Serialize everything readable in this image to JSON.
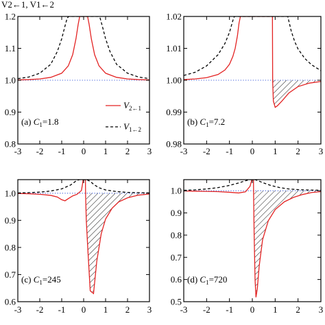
{
  "header_fragment": "V2←1, V1←2",
  "colors": {
    "v21": "#e32222",
    "v12": "#000000",
    "reference": "#3b5bdb",
    "hatch": "#000000"
  },
  "chart_data": [
    {
      "type": "line",
      "panel": "a",
      "annotation": {
        "label": "(a) ",
        "c_symbol": "C",
        "c_sub": "1",
        "value": "=1.8"
      },
      "xlim": [
        -3,
        3
      ],
      "ylim": [
        0.8,
        1.2
      ],
      "xticks": [
        "-3",
        "-2",
        "-1",
        "0",
        "1",
        "2",
        "3"
      ],
      "yticks": [
        "0.8",
        "0.9",
        "1.0",
        "1.1",
        "1.2"
      ],
      "yticks_values": [
        0.8,
        0.9,
        1.0,
        1.1,
        1.2
      ],
      "reference_line": 1.0,
      "series": [
        {
          "name": "V2←1",
          "style": "solid",
          "color": "#e32222",
          "x": [
            -3,
            -2.5,
            -2,
            -1.5,
            -1,
            -0.7,
            -0.5,
            -0.35,
            -0.25,
            -0.18,
            0.18,
            0.25,
            0.35,
            0.5,
            0.7,
            1,
            1.5,
            2,
            2.5,
            3
          ],
          "y": [
            1.001,
            1.002,
            1.004,
            1.009,
            1.022,
            1.045,
            1.08,
            1.13,
            1.175,
            1.2,
            1.2,
            1.175,
            1.13,
            1.08,
            1.045,
            1.022,
            1.009,
            1.004,
            1.002,
            1.001
          ]
        },
        {
          "name": "V1←2",
          "style": "dashed",
          "color": "#000000",
          "x": [
            -3,
            -2.5,
            -2,
            -1.5,
            -1.2,
            -1,
            -0.85,
            -0.75,
            -0.68,
            0.68,
            0.75,
            0.85,
            1,
            1.2,
            1.5,
            2,
            2.5,
            3
          ],
          "y": [
            1.005,
            1.01,
            1.022,
            1.05,
            1.09,
            1.13,
            1.17,
            1.195,
            1.2,
            1.2,
            1.195,
            1.17,
            1.13,
            1.09,
            1.05,
            1.022,
            1.01,
            1.005
          ]
        }
      ],
      "legend": {
        "placement": "lower-right",
        "entries": [
          {
            "symbol": "V",
            "sub": "2←1",
            "style": "solid"
          },
          {
            "symbol": "V",
            "sub": "1←2",
            "style": "dashed"
          }
        ]
      }
    },
    {
      "type": "line",
      "panel": "b",
      "annotation": {
        "label": "(b) ",
        "c_symbol": "C",
        "c_sub": "1",
        "value": "=7.2"
      },
      "xlim": [
        -3,
        3
      ],
      "ylim": [
        0.98,
        1.02
      ],
      "xticks": [
        "-3",
        "-2",
        "-1",
        "0",
        "1",
        "2",
        "3"
      ],
      "yticks": [
        "0.98",
        "0.99",
        "1.00",
        "1.01",
        "1.02"
      ],
      "yticks_values": [
        0.98,
        0.99,
        1.0,
        1.01,
        1.02
      ],
      "reference_line": 1.0,
      "hatched_region": {
        "x_from": 0.9,
        "x_to": 3
      },
      "series": [
        {
          "name": "V2←1",
          "style": "solid",
          "color": "#e32222",
          "x": [
            -3,
            -2.5,
            -2,
            -1.5,
            -1.2,
            -1,
            -0.85,
            -0.75,
            -0.65,
            -0.58,
            -0.52,
            0.88,
            0.89,
            0.92,
            1.0,
            1.1,
            1.3,
            1.6,
            2,
            2.5,
            3
          ],
          "y": [
            1.0002,
            1.0004,
            1.0008,
            1.0018,
            1.0032,
            1.005,
            1.0075,
            1.01,
            1.014,
            1.018,
            1.02,
            1.02,
            0.9995,
            0.9935,
            0.9915,
            0.992,
            0.9935,
            0.996,
            0.998,
            0.9991,
            0.9996
          ]
        },
        {
          "name": "V1←2",
          "style": "dashed",
          "color": "#000000",
          "x": [
            -3,
            -2.5,
            -2,
            -1.5,
            -1.2,
            -1,
            -0.9,
            -0.82,
            -0.78,
            1.55,
            1.6,
            1.7,
            1.85,
            2,
            2.3,
            2.6,
            3
          ],
          "y": [
            1.0015,
            1.0025,
            1.0045,
            1.008,
            1.0115,
            1.015,
            1.0175,
            1.0195,
            1.02,
            1.02,
            1.0185,
            1.0155,
            1.0122,
            1.0098,
            1.0068,
            1.0048,
            1.003
          ]
        }
      ]
    },
    {
      "type": "line",
      "panel": "c",
      "annotation": {
        "label": "(c) ",
        "c_symbol": "C",
        "c_sub": "1",
        "value": "=245"
      },
      "xlim": [
        -3,
        3
      ],
      "ylim": [
        0.6,
        1.05
      ],
      "xticks": [
        "-3",
        "-2",
        "-1",
        "0",
        "1",
        "2",
        "3"
      ],
      "yticks": [
        "0.6",
        "0.7",
        "0.8",
        "0.9",
        "1.0"
      ],
      "yticks_values": [
        0.6,
        0.7,
        0.8,
        0.9,
        1.0
      ],
      "reference_line": 1.0,
      "hatched_region": {
        "x_from": 0.12,
        "x_to": 3
      },
      "series": [
        {
          "name": "V2←1",
          "style": "solid",
          "color": "#e32222",
          "x": [
            -3,
            -2.5,
            -2,
            -1.5,
            -1.2,
            -1.0,
            -0.85,
            -0.7,
            -0.5,
            -0.3,
            -0.1,
            -0.02,
            0.08,
            0.09,
            0.12,
            0.2,
            0.3,
            0.45,
            0.6,
            0.8,
            1.0,
            1.3,
            1.6,
            2.0,
            2.5,
            3
          ],
          "y": [
            0.999,
            0.998,
            0.996,
            0.992,
            0.986,
            0.976,
            0.972,
            0.98,
            0.99,
            0.996,
            1.01,
            1.05,
            1.05,
            0.99,
            0.9,
            0.78,
            0.64,
            0.63,
            0.75,
            0.85,
            0.905,
            0.945,
            0.968,
            0.983,
            0.993,
            0.997
          ]
        },
        {
          "name": "V1←2",
          "style": "dashed",
          "color": "#000000",
          "x": [
            -3,
            -2.5,
            -2,
            -1.5,
            -1.0,
            -0.6,
            -0.35,
            -0.2,
            -0.1,
            0.1,
            0.2,
            0.35,
            0.5,
            0.7,
            1.0,
            1.5,
            2,
            2.5,
            3
          ],
          "y": [
            1.001,
            1.002,
            1.004,
            1.008,
            1.016,
            1.03,
            1.045,
            1.05,
            1.05,
            1.05,
            1.048,
            1.04,
            1.03,
            1.02,
            1.012,
            1.006,
            1.003,
            1.002,
            1.001
          ]
        }
      ]
    },
    {
      "type": "line",
      "panel": "d",
      "annotation": {
        "label": "(d) ",
        "c_symbol": "C",
        "c_sub": "1",
        "value": "=720"
      },
      "xlim": [
        -3,
        3
      ],
      "ylim": [
        0.5,
        1.05
      ],
      "xticks": [
        "-3",
        "-2",
        "-1",
        "0",
        "1",
        "2",
        "3"
      ],
      "yticks": [
        "0.5",
        "0.6",
        "0.7",
        "0.8",
        "0.9",
        "1.0"
      ],
      "yticks_values": [
        0.5,
        0.6,
        0.7,
        0.8,
        0.9,
        1.0
      ],
      "reference_line": 1.0,
      "hatched_region": {
        "x_from": 0.08,
        "x_to": 3
      },
      "series": [
        {
          "name": "V2←1",
          "style": "solid",
          "color": "#e32222",
          "x": [
            -3,
            -2.5,
            -2,
            -1.5,
            -1.0,
            -0.6,
            -0.3,
            -0.1,
            -0.02,
            0.05,
            0.06,
            0.08,
            0.12,
            0.16,
            0.22,
            0.3,
            0.45,
            0.7,
            1.0,
            1.4,
            1.8,
            2.2,
            2.6,
            3
          ],
          "y": [
            0.999,
            0.998,
            0.997,
            0.996,
            0.993,
            0.99,
            0.995,
            1.02,
            1.05,
            1.05,
            0.95,
            0.8,
            0.6,
            0.52,
            0.56,
            0.66,
            0.78,
            0.865,
            0.915,
            0.95,
            0.97,
            0.983,
            0.992,
            0.996
          ]
        },
        {
          "name": "V1←2",
          "style": "dashed",
          "color": "#000000",
          "x": [
            -3,
            -2.5,
            -2,
            -1.5,
            -1.0,
            -0.6,
            -0.3,
            -0.12,
            -0.05,
            0.05,
            0.12,
            0.25,
            0.5,
            0.8,
            1.2,
            1.6,
            2,
            2.5,
            3
          ],
          "y": [
            1.002,
            1.004,
            1.008,
            1.014,
            1.024,
            1.035,
            1.045,
            1.05,
            1.05,
            1.05,
            1.05,
            1.045,
            1.035,
            1.024,
            1.014,
            1.008,
            1.005,
            1.003,
            1.002
          ]
        }
      ]
    }
  ]
}
